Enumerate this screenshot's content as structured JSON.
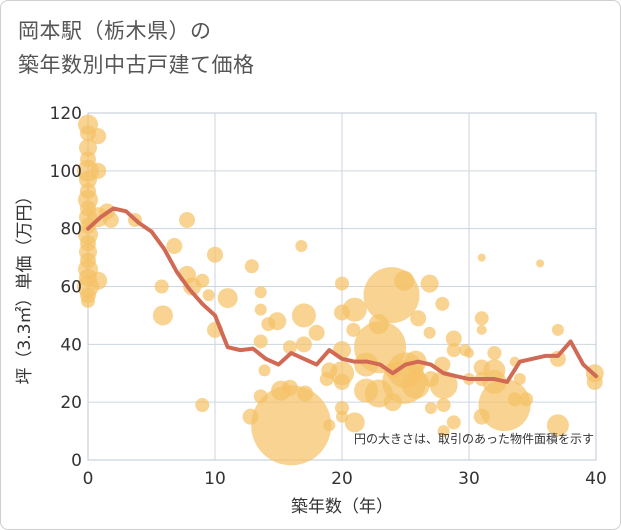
{
  "title_line1": "岡本駅（栃木県）の",
  "title_line2": "築年数別中古戸建て価格",
  "chart_data": {
    "type": "scatter",
    "title": "岡本駅（栃木県）の 築年数別中古戸建て価格",
    "xlabel": "築年数（年）",
    "ylabel": "坪（3.3㎡）単価（万円）",
    "xlim": [
      0,
      40
    ],
    "ylim": [
      0,
      120
    ],
    "xticks": [
      0,
      10,
      20,
      30,
      40
    ],
    "yticks": [
      0,
      20,
      40,
      60,
      80,
      100,
      120
    ],
    "grid": true,
    "annotation": "円の大きさは、取引のあった物件面積を示す",
    "colors": {
      "bubble": "#f5c266",
      "line": "#d06a55",
      "grid": "#ccd6e0"
    },
    "bubbles": [
      {
        "x": 0,
        "y": 116,
        "s": 10
      },
      {
        "x": 0,
        "y": 113,
        "s": 8
      },
      {
        "x": 0,
        "y": 108,
        "s": 9
      },
      {
        "x": 0,
        "y": 104,
        "s": 8
      },
      {
        "x": 0,
        "y": 100,
        "s": 11
      },
      {
        "x": 0,
        "y": 97,
        "s": 9
      },
      {
        "x": 0,
        "y": 93,
        "s": 8
      },
      {
        "x": 0,
        "y": 90,
        "s": 10
      },
      {
        "x": 0,
        "y": 87,
        "s": 8
      },
      {
        "x": 0,
        "y": 84,
        "s": 9
      },
      {
        "x": 0,
        "y": 81,
        "s": 8
      },
      {
        "x": 0,
        "y": 78,
        "s": 10
      },
      {
        "x": 0,
        "y": 75,
        "s": 8
      },
      {
        "x": 0,
        "y": 72,
        "s": 9
      },
      {
        "x": 0,
        "y": 69,
        "s": 8
      },
      {
        "x": 0,
        "y": 66,
        "s": 10
      },
      {
        "x": 0,
        "y": 63,
        "s": 9
      },
      {
        "x": 0,
        "y": 60,
        "s": 11
      },
      {
        "x": 0,
        "y": 57,
        "s": 8
      },
      {
        "x": 0,
        "y": 55,
        "s": 7
      },
      {
        "x": 0.8,
        "y": 112,
        "s": 8
      },
      {
        "x": 0.8,
        "y": 100,
        "s": 8
      },
      {
        "x": 0.8,
        "y": 84,
        "s": 10
      },
      {
        "x": 0.8,
        "y": 62,
        "s": 9
      },
      {
        "x": 1.5,
        "y": 86,
        "s": 8
      },
      {
        "x": 1.8,
        "y": 83,
        "s": 8
      },
      {
        "x": 3.7,
        "y": 83,
        "s": 7
      },
      {
        "x": 6.8,
        "y": 74,
        "s": 8
      },
      {
        "x": 7.8,
        "y": 83,
        "s": 8
      },
      {
        "x": 7.8,
        "y": 64,
        "s": 9
      },
      {
        "x": 8.2,
        "y": 60,
        "s": 9
      },
      {
        "x": 9.0,
        "y": 62,
        "s": 7
      },
      {
        "x": 9.0,
        "y": 19,
        "s": 7
      },
      {
        "x": 5.8,
        "y": 60,
        "s": 7
      },
      {
        "x": 5.9,
        "y": 50,
        "s": 10
      },
      {
        "x": 9.5,
        "y": 57,
        "s": 6
      },
      {
        "x": 10.0,
        "y": 71,
        "s": 8
      },
      {
        "x": 10.0,
        "y": 45,
        "s": 8
      },
      {
        "x": 11.0,
        "y": 56,
        "s": 10
      },
      {
        "x": 12.9,
        "y": 67,
        "s": 7
      },
      {
        "x": 13.6,
        "y": 58,
        "s": 6
      },
      {
        "x": 13.6,
        "y": 52,
        "s": 6
      },
      {
        "x": 13.6,
        "y": 41,
        "s": 7
      },
      {
        "x": 13.9,
        "y": 31,
        "s": 6
      },
      {
        "x": 12.8,
        "y": 15,
        "s": 8
      },
      {
        "x": 13.6,
        "y": 22,
        "s": 7
      },
      {
        "x": 14.2,
        "y": 47,
        "s": 7
      },
      {
        "x": 14.9,
        "y": 48,
        "s": 9
      },
      {
        "x": 15.2,
        "y": 24,
        "s": 10
      },
      {
        "x": 15.9,
        "y": 39,
        "s": 7
      },
      {
        "x": 15.9,
        "y": 25,
        "s": 8
      },
      {
        "x": 16.0,
        "y": 12,
        "s": 40
      },
      {
        "x": 16.8,
        "y": 74,
        "s": 6
      },
      {
        "x": 17.0,
        "y": 50,
        "s": 12
      },
      {
        "x": 17.0,
        "y": 40,
        "s": 8
      },
      {
        "x": 17.1,
        "y": 23,
        "s": 8
      },
      {
        "x": 18.0,
        "y": 44,
        "s": 8
      },
      {
        "x": 18.8,
        "y": 28,
        "s": 7
      },
      {
        "x": 19.0,
        "y": 31,
        "s": 8
      },
      {
        "x": 19.0,
        "y": 12,
        "s": 6
      },
      {
        "x": 20.0,
        "y": 61,
        "s": 7
      },
      {
        "x": 20.0,
        "y": 51,
        "s": 8
      },
      {
        "x": 20.0,
        "y": 38,
        "s": 9
      },
      {
        "x": 20.0,
        "y": 30,
        "s": 12
      },
      {
        "x": 20.0,
        "y": 27,
        "s": 8
      },
      {
        "x": 20.0,
        "y": 18,
        "s": 7
      },
      {
        "x": 20.0,
        "y": 15,
        "s": 6
      },
      {
        "x": 20.9,
        "y": 45,
        "s": 7
      },
      {
        "x": 21.0,
        "y": 13,
        "s": 10
      },
      {
        "x": 21.0,
        "y": 52,
        "s": 12
      },
      {
        "x": 21.9,
        "y": 33,
        "s": 12
      },
      {
        "x": 21.9,
        "y": 24,
        "s": 12
      },
      {
        "x": 22.9,
        "y": 47,
        "s": 10
      },
      {
        "x": 22.9,
        "y": 23,
        "s": 14
      },
      {
        "x": 23.0,
        "y": 39,
        "s": 26
      },
      {
        "x": 23.9,
        "y": 57,
        "s": 28
      },
      {
        "x": 24.0,
        "y": 31,
        "s": 8
      },
      {
        "x": 24.0,
        "y": 20,
        "s": 9
      },
      {
        "x": 24.9,
        "y": 62,
        "s": 10
      },
      {
        "x": 24.9,
        "y": 27,
        "s": 22
      },
      {
        "x": 25.0,
        "y": 31,
        "s": 18
      },
      {
        "x": 25.8,
        "y": 34,
        "s": 11
      },
      {
        "x": 25.8,
        "y": 26,
        "s": 14
      },
      {
        "x": 26.0,
        "y": 49,
        "s": 8
      },
      {
        "x": 26.9,
        "y": 61,
        "s": 9
      },
      {
        "x": 26.9,
        "y": 44,
        "s": 6
      },
      {
        "x": 27.0,
        "y": 28,
        "s": 8
      },
      {
        "x": 27.0,
        "y": 18,
        "s": 6
      },
      {
        "x": 27.9,
        "y": 54,
        "s": 7
      },
      {
        "x": 27.9,
        "y": 33,
        "s": 8
      },
      {
        "x": 28.0,
        "y": 26,
        "s": 14
      },
      {
        "x": 28.0,
        "y": 19,
        "s": 7
      },
      {
        "x": 28.0,
        "y": 10,
        "s": 6
      },
      {
        "x": 28.8,
        "y": 42,
        "s": 8
      },
      {
        "x": 28.8,
        "y": 38,
        "s": 7
      },
      {
        "x": 28.8,
        "y": 13,
        "s": 7
      },
      {
        "x": 29.7,
        "y": 38,
        "s": 6
      },
      {
        "x": 30.0,
        "y": 28,
        "s": 6
      },
      {
        "x": 30.0,
        "y": 37,
        "s": 5
      },
      {
        "x": 31.0,
        "y": 70,
        "s": 4
      },
      {
        "x": 31.0,
        "y": 49,
        "s": 7
      },
      {
        "x": 31.0,
        "y": 45,
        "s": 5
      },
      {
        "x": 31.0,
        "y": 32,
        "s": 8
      },
      {
        "x": 31.0,
        "y": 28,
        "s": 7
      },
      {
        "x": 31.0,
        "y": 15,
        "s": 8
      },
      {
        "x": 32.0,
        "y": 37,
        "s": 7
      },
      {
        "x": 32.0,
        "y": 27,
        "s": 12
      },
      {
        "x": 32.0,
        "y": 31,
        "s": 11
      },
      {
        "x": 32.8,
        "y": 19,
        "s": 26
      },
      {
        "x": 33.6,
        "y": 34,
        "s": 5
      },
      {
        "x": 33.6,
        "y": 21,
        "s": 7
      },
      {
        "x": 34.0,
        "y": 28,
        "s": 6
      },
      {
        "x": 34.5,
        "y": 21,
        "s": 7
      },
      {
        "x": 35.6,
        "y": 68,
        "s": 4
      },
      {
        "x": 37.0,
        "y": 45,
        "s": 6
      },
      {
        "x": 37.0,
        "y": 35,
        "s": 8
      },
      {
        "x": 37.0,
        "y": 12,
        "s": 11
      },
      {
        "x": 39.9,
        "y": 30,
        "s": 9
      },
      {
        "x": 39.9,
        "y": 27,
        "s": 8
      }
    ],
    "trend": {
      "x": [
        0,
        1,
        2,
        3,
        4,
        5,
        6,
        7,
        8,
        9,
        10,
        11,
        12,
        13,
        14,
        15,
        16,
        17,
        18,
        19,
        20,
        21,
        22,
        23,
        24,
        25,
        26,
        27,
        28,
        29,
        30,
        31,
        32,
        33,
        34,
        35,
        36,
        37,
        38,
        39,
        40
      ],
      "y": [
        80,
        84,
        87,
        86,
        82,
        79,
        73,
        65,
        59,
        54,
        50,
        39,
        38,
        38.5,
        35,
        33,
        37,
        35,
        33,
        38,
        35,
        34,
        34,
        33,
        30,
        33,
        34,
        33,
        30,
        29,
        28,
        28,
        28,
        27,
        34,
        35,
        36,
        36,
        41,
        33,
        29
      ]
    }
  }
}
